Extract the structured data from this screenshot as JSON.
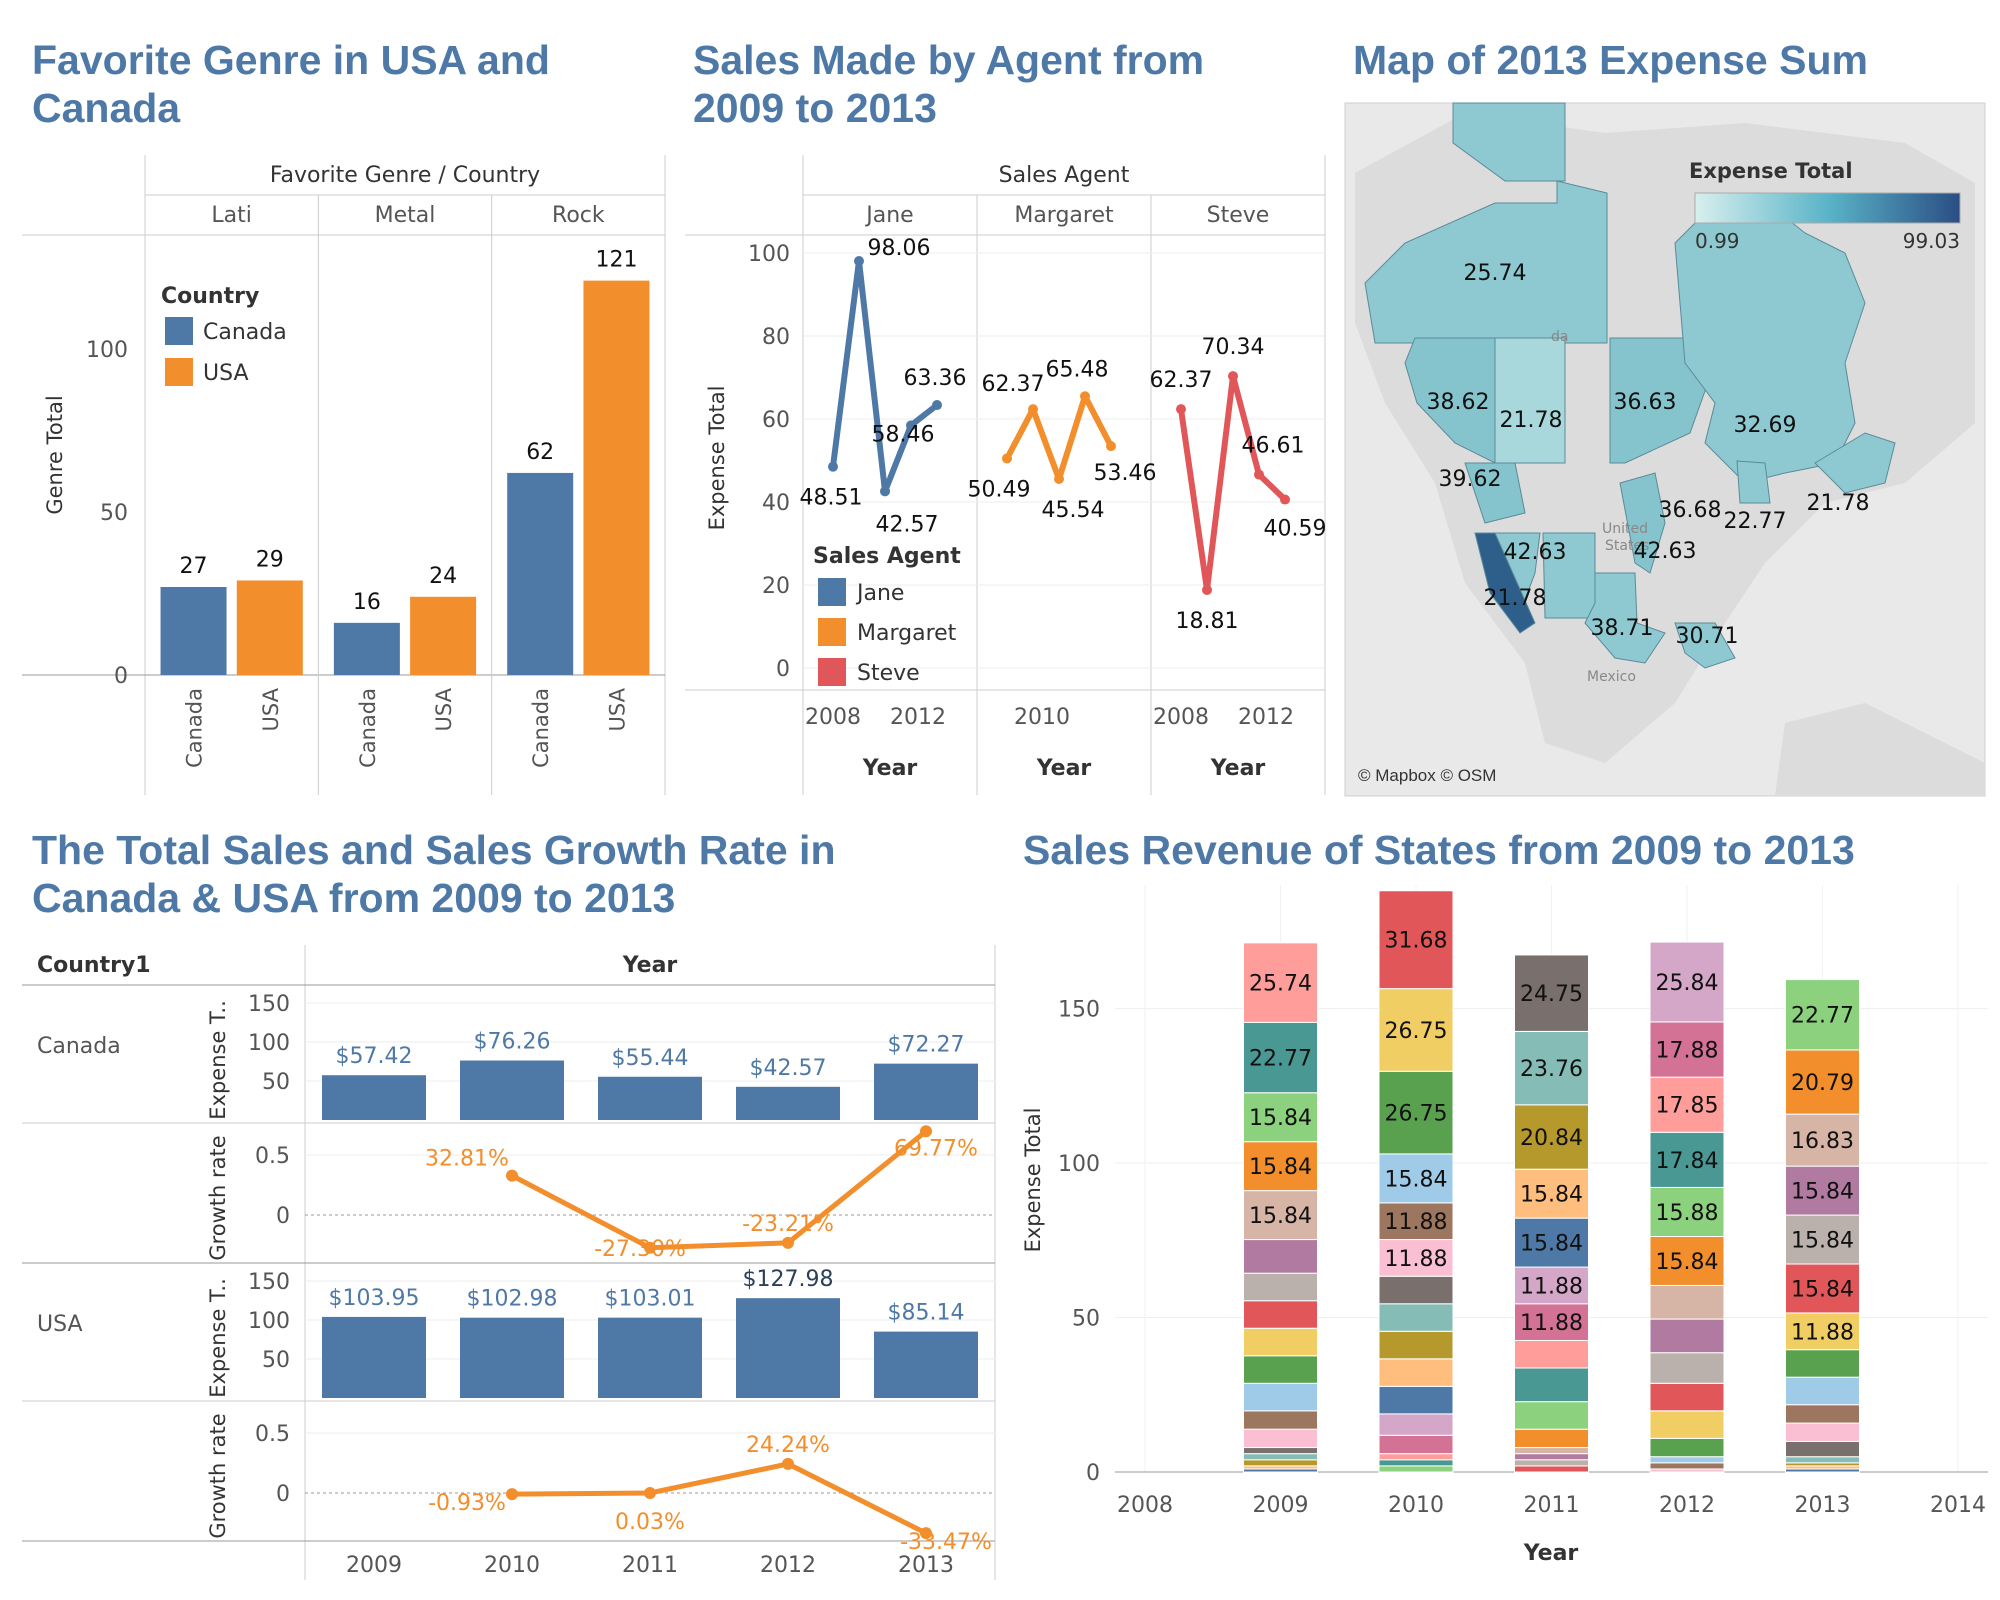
{
  "titles": {
    "genre": "Favorite Genre in USA and Canada",
    "agent": "Sales Made by Agent from 2009 to 2013",
    "map": "Map of 2013 Expense Sum",
    "growth": "The Total Sales and Sales Growth Rate in Canada & USA from 2009 to 2013",
    "states": "Sales Revenue of States from 2009 to 2013"
  },
  "colors": {
    "blue": "#4e79a7",
    "orange": "#f28e2b",
    "red": "#e15759",
    "title": "#4e79a7"
  },
  "map": {
    "legend_title": "Expense Total",
    "legend_min": "0.99",
    "legend_max": "99.03",
    "credit": "© Mapbox © OSM",
    "labels": [
      "25.74",
      "38.62",
      "21.78",
      "36.63",
      "32.69",
      "39.62",
      "36.68",
      "42.63",
      "42.63",
      "22.77",
      "21.78",
      "21.78",
      "38.71",
      "30.71"
    ],
    "places": [
      "da",
      "United",
      "States",
      "Mexico"
    ]
  },
  "chart_data": [
    {
      "type": "bar",
      "header": "Favorite Genre / Country",
      "ylabel": "Genre Total",
      "ylim": [
        0,
        135
      ],
      "yticks": [
        "0",
        "50",
        "100"
      ],
      "legend_title": "Country",
      "legend": [
        "Canada",
        "USA"
      ],
      "groups": [
        "Lati",
        "Metal",
        "Rock"
      ],
      "categories": [
        "Canada",
        "USA",
        "Canada",
        "USA",
        "Canada",
        "USA"
      ],
      "values": [
        27,
        29,
        16,
        24,
        62,
        121
      ],
      "labels": [
        "27",
        "29",
        "16",
        "24",
        "62",
        "121"
      ]
    },
    {
      "type": "line",
      "header": "Sales Agent",
      "ylabel": "Expense Total",
      "xlabel": "Year",
      "ylim": [
        0,
        100
      ],
      "yticks": [
        "0",
        "20",
        "40",
        "60",
        "80",
        "100"
      ],
      "legend_title": "Sales Agent",
      "panels": [
        {
          "name": "Jane",
          "x": [
            2009,
            2010,
            2011,
            2012,
            2013
          ],
          "values": [
            48.51,
            98.06,
            42.57,
            58.46,
            63.36
          ],
          "labels": [
            "48.51",
            "98.06",
            "42.57",
            "58.46",
            "63.36"
          ],
          "xticks": [
            "2008",
            "2012"
          ]
        },
        {
          "name": "Margaret",
          "x": [
            2009,
            2010,
            2011,
            2012,
            2013
          ],
          "values": [
            50.49,
            62.37,
            45.54,
            65.48,
            53.46
          ],
          "labels": [
            "50.49",
            "62.37",
            "45.54",
            "65.48",
            "53.46"
          ],
          "xticks": [
            "2010"
          ]
        },
        {
          "name": "Steve",
          "x": [
            2009,
            2010,
            2011,
            2012,
            2013
          ],
          "values": [
            62.37,
            18.81,
            70.34,
            46.61,
            40.59
          ],
          "labels": [
            "62.37",
            "18.81",
            "70.34",
            "46.61",
            "40.59"
          ],
          "xticks": [
            "2008",
            "2012"
          ]
        }
      ]
    },
    {
      "type": "bar",
      "header": "Year",
      "row_header": "Country1",
      "categories": [
        "2009",
        "2010",
        "2011",
        "2012",
        "2013"
      ],
      "bar_axis_label": "Expense T..",
      "rate_axis_label": "Growth rate",
      "bar_ticks": [
        "50",
        "100",
        "150"
      ],
      "rate_ticks": [
        "0",
        "0.5"
      ],
      "series": [
        {
          "name": "Canada",
          "values": [
            57.42,
            76.26,
            55.44,
            42.57,
            72.27
          ],
          "labels": [
            "$57.42",
            "$76.26",
            "$55.44",
            "$42.57",
            "$72.27"
          ],
          "growth": [
            null,
            0.3281,
            -0.273,
            -0.2321,
            0.6977
          ],
          "growth_labels": [
            "",
            "32.81%",
            "-27.30%",
            "-23.21%",
            "69.77%"
          ]
        },
        {
          "name": "USA",
          "values": [
            103.95,
            102.98,
            103.01,
            127.98,
            85.14
          ],
          "labels": [
            "$103.95",
            "$102.98",
            "$103.01",
            "$127.98",
            "$85.14"
          ],
          "growth": [
            null,
            -0.0093,
            0.0003,
            0.2424,
            -0.3347
          ],
          "growth_labels": [
            "",
            "-0.93%",
            "0.03%",
            "24.24%",
            "-33.47%"
          ]
        }
      ]
    },
    {
      "type": "bar",
      "stacked": true,
      "ylabel": "Expense Total",
      "xlabel": "Year",
      "ylim": [
        0,
        190
      ],
      "yticks": [
        "0",
        "50",
        "100",
        "150"
      ],
      "xticks": [
        "2008",
        "2009",
        "2010",
        "2011",
        "2012",
        "2013",
        "2014"
      ],
      "categories": [
        "2009",
        "2010",
        "2011",
        "2012",
        "2013"
      ],
      "stacks": [
        {
          "year": "2009",
          "values": [
            0.99,
            0.99,
            1.98,
            1.98,
            1.98,
            5.94,
            5.94,
            8.91,
            8.91,
            8.91,
            8.91,
            8.91,
            10.89,
            15.84,
            15.84,
            15.84,
            22.77,
            25.74
          ],
          "labels": [
            "",
            "",
            "",
            "",
            "",
            "",
            "",
            "",
            "",
            "",
            "",
            "",
            "",
            "15.84",
            "15.84",
            "15.84",
            "22.77",
            "25.74"
          ]
        },
        {
          "year": "2010",
          "values": [
            1.98,
            1.98,
            1.98,
            5.94,
            6.93,
            8.91,
            8.91,
            8.91,
            8.91,
            8.91,
            11.88,
            11.88,
            15.84,
            26.75,
            26.75,
            31.68
          ],
          "labels": [
            "",
            "",
            "",
            "",
            "",
            "",
            "",
            "",
            "",
            "",
            "11.88",
            "11.88",
            "15.84",
            "26.75",
            "26.75",
            "31.68"
          ]
        },
        {
          "year": "2011",
          "values": [
            1.98,
            1.98,
            1.98,
            1.98,
            5.94,
            8.91,
            10.89,
            8.91,
            11.88,
            11.88,
            15.84,
            15.84,
            20.84,
            23.76,
            24.75
          ],
          "labels": [
            "",
            "",
            "",
            "",
            "",
            "",
            "",
            "",
            "11.88",
            "11.88",
            "15.84",
            "15.84",
            "20.84",
            "23.76",
            "24.75"
          ]
        },
        {
          "year": "2012",
          "values": [
            0.99,
            1.98,
            1.98,
            5.94,
            8.91,
            8.91,
            9.9,
            10.89,
            10.89,
            15.84,
            15.88,
            17.84,
            17.85,
            17.88,
            25.84
          ],
          "labels": [
            "",
            "",
            "",
            "",
            "",
            "",
            "",
            "",
            "",
            "15.84",
            "15.88",
            "17.84",
            "17.85",
            "17.88",
            "25.84"
          ]
        },
        {
          "year": "2013",
          "values": [
            0.99,
            0.99,
            0.99,
            1.98,
            4.95,
            5.94,
            5.94,
            8.91,
            8.91,
            11.88,
            15.84,
            15.84,
            15.84,
            16.83,
            20.79,
            22.77
          ],
          "labels": [
            "",
            "",
            "",
            "",
            "",
            "",
            "",
            "",
            "",
            "11.88",
            "15.84",
            "15.84",
            "15.84",
            "16.83",
            "20.79",
            "22.77"
          ]
        }
      ]
    }
  ]
}
